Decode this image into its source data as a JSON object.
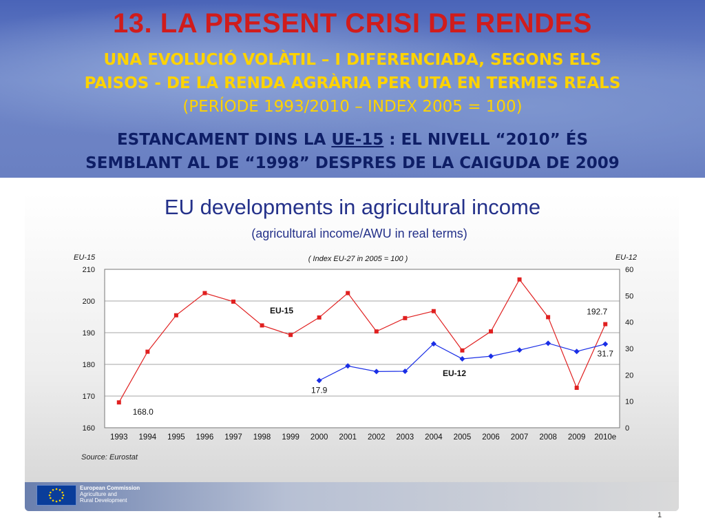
{
  "header": {
    "title": "13. LA PRESENT CRISI DE RENDES",
    "subtitle_line1": "UNA EVOLUCIÓ VOLÀTIL – I DIFERENCIADA, SEGONS ELS",
    "subtitle_line2": "PAISOS - DE LA RENDA AGRÀRIA PER UTA EN TERMES REALS",
    "subtitle_line3": "(PERÍODE 1993/2010 – INDEX 2005 = 100)",
    "note_part1": "ESTANCAMENT DINS LA ",
    "note_underlined": "UE-15",
    "note_part2": " : EL NIVELL “2010” ÉS",
    "note_line2": "SEMBLANT AL DE “1998” DESPRES DE LA CAIGUDA DE 2009"
  },
  "chart_data": {
    "type": "line",
    "title": "EU developments in agricultural income",
    "subtitle": "(agricultural income/AWU in real terms)",
    "note": "( Index EU-27 in 2005 = 100 )",
    "left_axis_label": "EU-15",
    "right_axis_label": "EU-12",
    "categories": [
      "1993",
      "1994",
      "1995",
      "1996",
      "1997",
      "1998",
      "1999",
      "2000",
      "2001",
      "2002",
      "2003",
      "2004",
      "2005",
      "2006",
      "2007",
      "2008",
      "2009",
      "2010e"
    ],
    "y_left": {
      "min": 160,
      "max": 210,
      "ticks": [
        160,
        170,
        180,
        190,
        200,
        210
      ]
    },
    "y_right": {
      "min": 0,
      "max": 60,
      "ticks": [
        0,
        10,
        20,
        30,
        40,
        50,
        60
      ]
    },
    "series": [
      {
        "name": "EU-15",
        "axis": "left",
        "color": "#e02020",
        "values": [
          168.0,
          184.0,
          195.5,
          202.5,
          199.8,
          192.3,
          189.3,
          194.8,
          202.5,
          190.4,
          194.6,
          196.8,
          184.4,
          190.4,
          206.8,
          194.9,
          172.6,
          192.7
        ]
      },
      {
        "name": "EU-12",
        "axis": "right",
        "color": "#1a2ee6",
        "values": [
          null,
          null,
          null,
          null,
          null,
          null,
          null,
          17.9,
          23.4,
          21.3,
          21.4,
          31.8,
          26.1,
          27.1,
          29.4,
          32.0,
          28.9,
          31.7
        ]
      }
    ],
    "data_labels": [
      {
        "text": "168.0",
        "series": "EU-15",
        "category": "1993"
      },
      {
        "text": "192.7",
        "series": "EU-15",
        "category": "2010e"
      },
      {
        "text": "17.9",
        "series": "EU-12",
        "category": "2000"
      },
      {
        "text": "31.7",
        "series": "EU-12",
        "category": "2010e"
      }
    ],
    "source": "Source: Eurostat",
    "grid": true
  },
  "footer": {
    "org_line1": "European Commission",
    "org_line2": "Agriculture and",
    "org_line3": "Rural Development",
    "page": "1"
  }
}
